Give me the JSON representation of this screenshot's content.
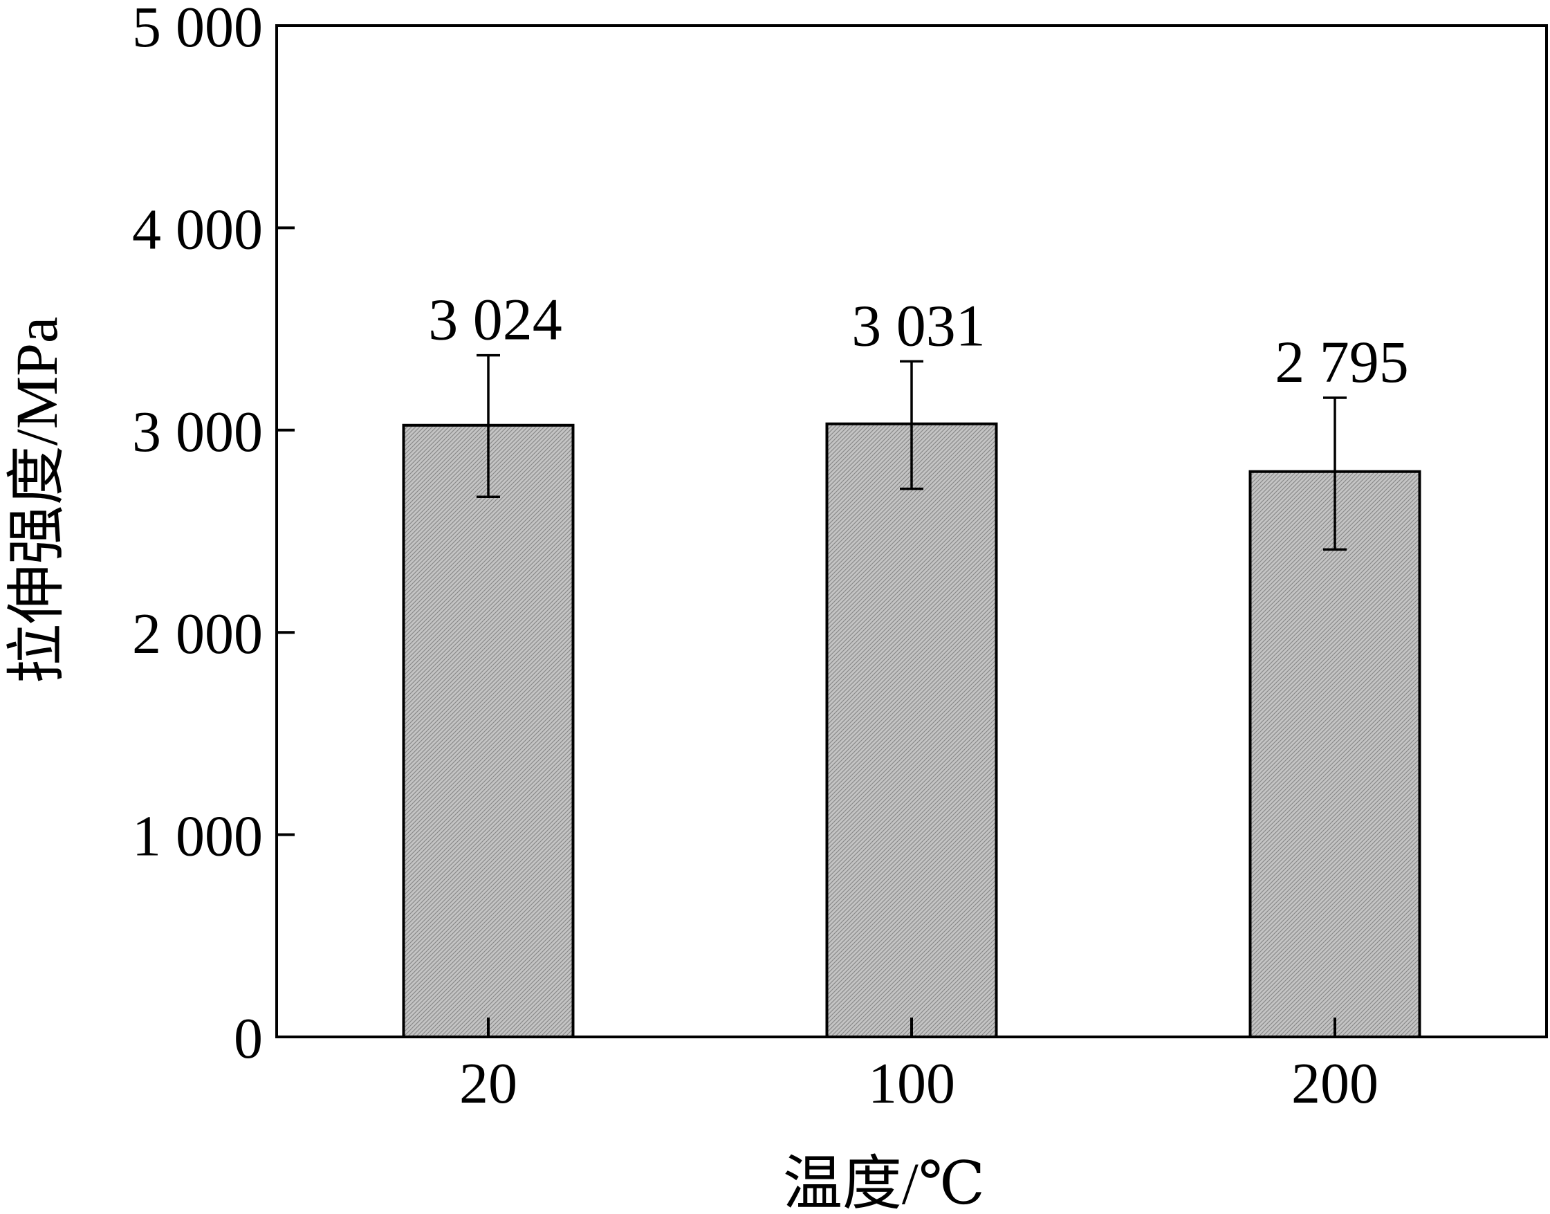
{
  "chart_data": {
    "type": "bar",
    "title": "",
    "xlabel": "温度/℃",
    "ylabel": "拉伸强度/MPa",
    "categories": [
      "20",
      "100",
      "200"
    ],
    "values": [
      3024,
      3031,
      2795
    ],
    "error_upper": [
      3370,
      3340,
      3160
    ],
    "error_lower": [
      2670,
      2710,
      2410
    ],
    "data_labels": [
      "3 024",
      "3 031",
      "2 795"
    ],
    "ylim": [
      0,
      5000
    ],
    "yticks": [
      0,
      1000,
      2000,
      3000,
      4000,
      5000
    ],
    "ytick_labels": [
      "0",
      "1 000",
      "2 000",
      "3 000",
      "4 000",
      "5 000"
    ],
    "grid": false,
    "bar_fill": "#bdbdbd",
    "bar_stroke": "#000000"
  }
}
